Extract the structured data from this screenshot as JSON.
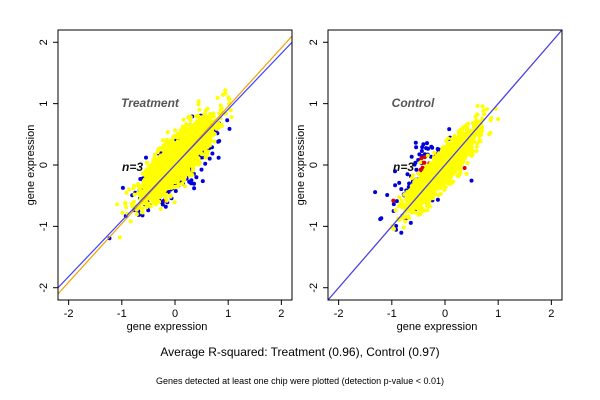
{
  "chart_data": [
    {
      "type": "scatter",
      "title": "Treatment",
      "annotation": "n=3",
      "xlabel": "gene expression",
      "ylabel": "gene expression",
      "xlim": [
        -2.2,
        2.2
      ],
      "ylim": [
        -2.2,
        2.2
      ],
      "xticks": [
        -2,
        -1,
        0,
        1,
        2
      ],
      "yticks": [
        -2,
        -1,
        0,
        1,
        2
      ],
      "grid": false,
      "lines": [
        {
          "color": "#f0a000",
          "points": [
            [
              -2.2,
              -2.1
            ],
            [
              2.2,
              2.1
            ]
          ]
        },
        {
          "color": "#4040ff",
          "points": [
            [
              -2.2,
              -2.0
            ],
            [
              2.2,
              2.0
            ]
          ]
        }
      ],
      "point_clouds": [
        {
          "color": "#0000dd",
          "count": 320,
          "center": [
            0.0,
            -0.05
          ],
          "sd_along": 0.48,
          "sd_across": 0.17
        },
        {
          "color": "#dd0000",
          "count": 14,
          "center": [
            -0.05,
            -0.1
          ],
          "sd_along": 0.35,
          "sd_across": 0.13
        },
        {
          "color": "#ffff00",
          "count": 2600,
          "center": [
            0.05,
            0.1
          ],
          "sd_along": 0.42,
          "sd_across": 0.13
        }
      ]
    },
    {
      "type": "scatter",
      "title": "Control",
      "annotation": "n=3",
      "xlabel": "gene expression",
      "ylabel": "gene expression",
      "xlim": [
        -2.2,
        2.2
      ],
      "ylim": [
        -2.2,
        2.2
      ],
      "xticks": [
        -2,
        -1,
        0,
        1,
        2
      ],
      "yticks": [
        -2,
        -1,
        0,
        1,
        2
      ],
      "grid": false,
      "lines": [
        {
          "color": "#f0a000",
          "points": [
            [
              -2.2,
              -2.2
            ],
            [
              2.2,
              2.2
            ]
          ]
        },
        {
          "color": "#4040ff",
          "points": [
            [
              -2.2,
              -2.2
            ],
            [
              2.2,
              2.2
            ]
          ]
        }
      ],
      "point_clouds": [
        {
          "color": "#0000dd",
          "count": 120,
          "center": [
            -0.4,
            -0.15
          ],
          "sd_along": 0.45,
          "sd_across": 0.2
        },
        {
          "color": "#dd0000",
          "count": 28,
          "center": [
            -0.35,
            -0.2
          ],
          "sd_along": 0.4,
          "sd_across": 0.18
        },
        {
          "color": "#ffff00",
          "count": 2400,
          "center": [
            -0.05,
            -0.05
          ],
          "sd_along": 0.42,
          "sd_across": 0.1
        }
      ]
    }
  ],
  "captions": {
    "main": "Average R-squared: Treatment (0.96), Control (0.97)",
    "sub": "Genes detected at least one chip were plotted (detection p-value < 0.01)"
  }
}
